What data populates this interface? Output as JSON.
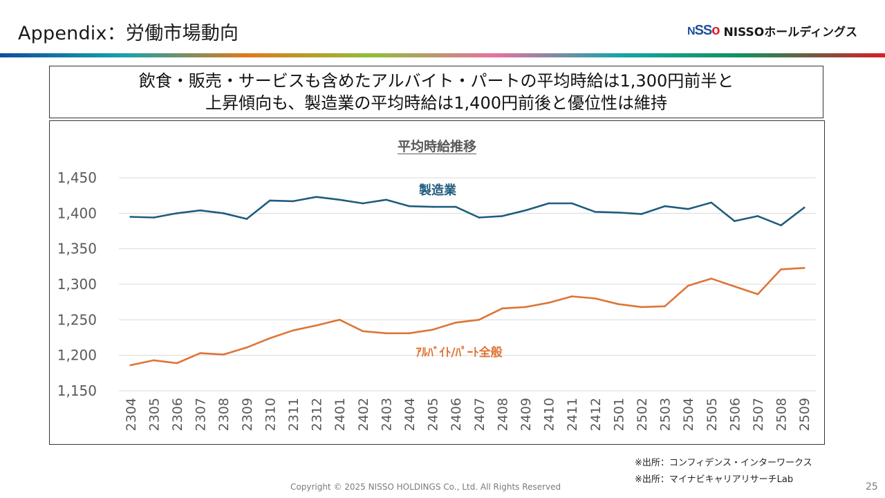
{
  "header": {
    "title": "Appendix：労働市場動向",
    "logo_mark_n": "N",
    "logo_mark_ss": "SS",
    "logo_mark_o": "o",
    "logo_text": "NISSOホールディングス"
  },
  "headline": {
    "line1": "飲食・販売・サービスも含めたアルバイト・パートの平均時給は1,300円前半と",
    "line2": "上昇傾向も、製造業の平均時給は1,400円前後と優位性は維持"
  },
  "colors": {
    "manufacturing": "#1f5c7e",
    "parttime": "#de7436",
    "grid": "#d9d9d9",
    "axis_text": "#595959"
  },
  "chart_data": {
    "type": "line",
    "title": "平均時給推移",
    "xlabel": "",
    "ylabel": "",
    "ylim": [
      1150,
      1450
    ],
    "yticks": [
      1150,
      1200,
      1250,
      1300,
      1350,
      1400,
      1450
    ],
    "ytick_labels": [
      "1,150",
      "1,200",
      "1,250",
      "1,300",
      "1,350",
      "1,400",
      "1,450"
    ],
    "grid": true,
    "legend": "inline labels",
    "categories": [
      "2304",
      "2305",
      "2306",
      "2307",
      "2308",
      "2309",
      "2310",
      "2311",
      "2312",
      "2401",
      "2402",
      "2403",
      "2404",
      "2405",
      "2406",
      "2407",
      "2408",
      "2409",
      "2410",
      "2411",
      "2412",
      "2501",
      "2502",
      "2503",
      "2504",
      "2505",
      "2506",
      "2507",
      "2508",
      "2509"
    ],
    "series": [
      {
        "name": "製造業",
        "label": "製造業",
        "values": [
          1395,
          1394,
          1400,
          1404,
          1400,
          1392,
          1418,
          1417,
          1423,
          1419,
          1414,
          1419,
          1410,
          1409,
          1409,
          1394,
          1396,
          1404,
          1414,
          1414,
          1402,
          1401,
          1399,
          1410,
          1406,
          1415,
          1389,
          1396,
          1383,
          1408
        ]
      },
      {
        "name": "アルバイト/パート全般",
        "label": "ｱﾙﾊﾞｲﾄ/ﾊﾟｰﾄ全般",
        "values": [
          1186,
          1193,
          1189,
          1203,
          1201,
          1211,
          1224,
          1235,
          1242,
          1250,
          1234,
          1231,
          1231,
          1236,
          1246,
          1250,
          1266,
          1268,
          1274,
          1283,
          1280,
          1272,
          1268,
          1269,
          1298,
          1308,
          1297,
          1286,
          1321,
          1323
        ]
      }
    ]
  },
  "footer": {
    "source1": "※出所：コンフィデンス・インターワークス",
    "source2": "※出所：マイナビキャリアリサーチLab",
    "copyright": "Copyright © 2025 NISSO HOLDINGS Co., Ltd. All Rights Reserved",
    "page_number": "25"
  }
}
